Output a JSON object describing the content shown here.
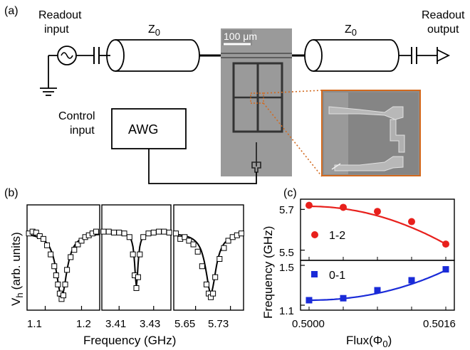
{
  "panel_a": {
    "label": "(a)",
    "readout_input": [
      "Readout",
      "input"
    ],
    "readout_output": [
      "Readout",
      "output"
    ],
    "z0_left": "Z",
    "z0_left_sub": "0",
    "z0_right": "Z",
    "z0_right_sub": "0",
    "control_input": [
      "Control",
      "input"
    ],
    "awg": "AWG",
    "scale_bar": "100 μm"
  },
  "panel_b": {
    "label": "(b)",
    "ylabel": "V",
    "ylabel_sub": "h",
    "ylabel_rest": "(arb. units)",
    "xlabel": "Frequency (GHz)",
    "ticks": [
      "1.1",
      "1.2",
      "3.41",
      "3.43",
      "5.65",
      "5.73"
    ]
  },
  "panel_c": {
    "label": "(c)",
    "ylabel": "Frequency (GHz)",
    "xlabel": "Flux(Φ",
    "xlabel_sub": "0",
    "xlabel_end": ")",
    "xticks": [
      "0.5000",
      "0.5016"
    ],
    "top_yticks": [
      "5.7",
      "5.5"
    ],
    "bottom_yticks": [
      "1.5",
      "1.1"
    ],
    "legend_top": "1-2",
    "legend_bottom": "0-1"
  },
  "colors": {
    "red_series": "#e8201c",
    "blue_series": "#1a2bd8",
    "chip": "#9a9a9a",
    "inset_border": "#d2691e"
  },
  "chart_data": [
    {
      "type": "scatter",
      "panel": "b",
      "xlabel": "Frequency (GHz)",
      "ylabel": "V_h (arb. units)",
      "segments": [
        {
          "xlim": [
            1.05,
            1.25
          ],
          "xticks": [
            1.1,
            1.2
          ],
          "dip_center": 1.145,
          "x": [
            1.055,
            1.065,
            1.075,
            1.085,
            1.095,
            1.105,
            1.115,
            1.125,
            1.13,
            1.135,
            1.14,
            1.145,
            1.15,
            1.155,
            1.16,
            1.17,
            1.18,
            1.19,
            1.2,
            1.21,
            1.22,
            1.23,
            1.24
          ],
          "y": [
            0.78,
            0.8,
            0.79,
            0.75,
            0.72,
            0.65,
            0.55,
            0.42,
            0.32,
            0.22,
            0.12,
            0.06,
            0.1,
            0.22,
            0.38,
            0.52,
            0.6,
            0.66,
            0.7,
            0.74,
            0.76,
            0.78,
            0.8
          ]
        },
        {
          "xlim": [
            3.4,
            3.44
          ],
          "xticks": [
            3.41,
            3.43
          ],
          "dip_center": 3.42,
          "x": [
            3.401,
            3.404,
            3.407,
            3.41,
            3.413,
            3.416,
            3.418,
            3.419,
            3.42,
            3.421,
            3.422,
            3.424,
            3.427,
            3.43,
            3.433,
            3.436,
            3.439
          ],
          "y": [
            0.8,
            0.8,
            0.79,
            0.79,
            0.78,
            0.74,
            0.55,
            0.32,
            0.18,
            0.3,
            0.55,
            0.74,
            0.78,
            0.79,
            0.8,
            0.8,
            0.79
          ]
        },
        {
          "xlim": [
            5.6,
            5.76
          ],
          "xticks": [
            5.65,
            5.73
          ],
          "dip_center": 5.685,
          "x": [
            5.605,
            5.615,
            5.625,
            5.635,
            5.645,
            5.655,
            5.665,
            5.675,
            5.68,
            5.685,
            5.69,
            5.695,
            5.705,
            5.715,
            5.725,
            5.735,
            5.745,
            5.755
          ],
          "y": [
            0.78,
            0.72,
            0.74,
            0.7,
            0.66,
            0.58,
            0.42,
            0.22,
            0.12,
            0.08,
            0.12,
            0.3,
            0.5,
            0.62,
            0.7,
            0.74,
            0.76,
            0.78
          ]
        }
      ]
    },
    {
      "type": "line",
      "panel": "c",
      "xlabel": "Flux(Φ0)",
      "ylabel": "Frequency (GHz)",
      "xlim": [
        0.4999,
        0.5017
      ],
      "subplots": [
        {
          "name": "1-2",
          "ylim": [
            5.45,
            5.75
          ],
          "yticks": [
            5.5,
            5.7
          ],
          "x": [
            0.5,
            0.5004,
            0.5008,
            0.5012,
            0.5016
          ],
          "y": [
            5.72,
            5.71,
            5.69,
            5.64,
            5.53
          ],
          "fit_y": [
            5.715,
            5.706,
            5.68,
            5.63,
            5.53
          ]
        },
        {
          "name": "0-1",
          "ylim": [
            1.05,
            1.55
          ],
          "yticks": [
            1.1,
            1.5
          ],
          "x": [
            0.5,
            0.5004,
            0.5008,
            0.5012,
            0.5016
          ],
          "y": [
            1.15,
            1.17,
            1.25,
            1.35,
            1.46
          ],
          "fit_y": [
            1.15,
            1.17,
            1.24,
            1.34,
            1.45
          ]
        }
      ]
    }
  ]
}
